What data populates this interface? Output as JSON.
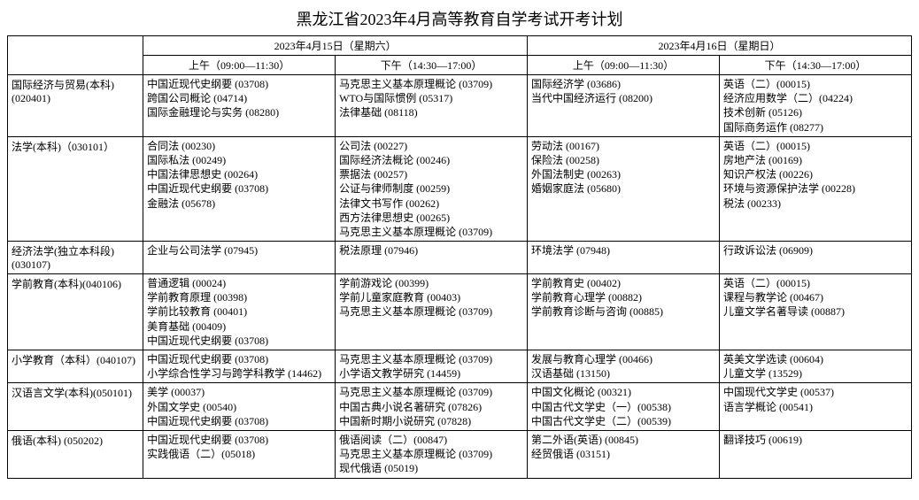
{
  "title": "黑龙江省2023年4月高等教育自学考试开考计划",
  "day1_header": "2023年4月15日（星期六）",
  "day2_header": "2023年4月16日（星期日）",
  "sat_am": "上午（09:00—11:30）",
  "sat_pm": "下午（14:30—17:00）",
  "sun_am": "上午（09:00—11:30）",
  "sun_pm": "下午（14:30—17:00）",
  "rows": [
    {
      "major": "国际经济与贸易(本科)(020401)",
      "sat_am": [
        "中国近现代史纲要 (03708)",
        "跨国公司概论 (04714)",
        "国际金融理论与实务 (08280)"
      ],
      "sat_pm": [
        "马克思主义基本原理概论 (03709)",
        "WTO与国际惯例 (05317)",
        "法律基础 (08118)"
      ],
      "sun_am": [
        "国际经济学 (03686)",
        "当代中国经济运行 (08200)"
      ],
      "sun_pm": [
        "英语（二）(00015)",
        "经济应用数学（二）(04224)",
        "技术创新 (05126)",
        "国际商务运作 (08277)"
      ]
    },
    {
      "major": "法学(本科)（030101）",
      "sat_am": [
        "合同法 (00230)",
        "国际私法 (00249)",
        "中国法律思想史 (00264)",
        "中国近现代史纲要 (03708)",
        "金融法 (05678)"
      ],
      "sat_pm": [
        "公司法 (00227)",
        "国际经济法概论 (00246)",
        "票据法 (00257)",
        "公证与律师制度 (00259)",
        "法律文书写作 (00262)",
        "西方法律思想史 (00265)",
        "马克思主义基本原理概论 (03709)"
      ],
      "sun_am": [
        "劳动法 (00167)",
        "保险法 (00258)",
        "外国法制史 (00263)",
        "婚姻家庭法 (05680)"
      ],
      "sun_pm": [
        "英语（二）(00015)",
        "房地产法 (00169)",
        "知识产权法 (00226)",
        "环境与资源保护法学 (00228)",
        "税法 (00233)"
      ]
    },
    {
      "major": "经济法学(独立本科段)(030107)",
      "sat_am": [
        "企业与公司法学 (07945)"
      ],
      "sat_pm": [
        "税法原理 (07946)"
      ],
      "sun_am": [
        "环境法学 (07948)"
      ],
      "sun_pm": [
        "行政诉讼法 (06909)"
      ]
    },
    {
      "major": "学前教育(本科)(040106)",
      "sat_am": [
        "普通逻辑 (00024)",
        "学前教育原理 (00398)",
        "学前比较教育 (00401)",
        "美育基础 (00409)",
        "中国近现代史纲要 (03708)"
      ],
      "sat_pm": [
        "学前游戏论 (00399)",
        "学前儿童家庭教育 (00403)",
        "马克思主义基本原理概论 (03709)"
      ],
      "sun_am": [
        "学前教育史 (00402)",
        "学前教育心理学 (00882)",
        "学前教育诊断与咨询 (00885)"
      ],
      "sun_pm": [
        "英语（二）(00015)",
        "课程与教学论 (00467)",
        "儿童文学名著导读 (00887)"
      ]
    },
    {
      "major": "小学教育（本科）(040107)",
      "sat_am": [
        "中国近现代史纲要 (03708)",
        "小学综合性学习与跨学科教学 (14462)"
      ],
      "sat_pm": [
        "马克思主义基本原理概论 (03709)",
        "小学语文教学研究 (14459)"
      ],
      "sun_am": [
        "发展与教育心理学 (00466)",
        "汉语基础 (13150)"
      ],
      "sun_pm": [
        "英美文学选读 (00604)",
        "儿童文学 (13529)"
      ]
    },
    {
      "major": "汉语言文学(本科)(050101)",
      "sat_am": [
        "美学 (00037)",
        "外国文学史 (00540)",
        "中国近现代史纲要 (03708)"
      ],
      "sat_pm": [
        "马克思主义基本原理概论 (03709)",
        "中国古典小说名著研究 (07826)",
        "中国新时期小说研究 (07828)"
      ],
      "sun_am": [
        "中国文化概论 (00321)",
        "中国古代文学史（一）(00538)",
        "中国古代文学史（二）(00539)"
      ],
      "sun_pm": [
        "中国现代文学史 (00537)",
        "语言学概论 (00541)"
      ]
    },
    {
      "major": "俄语(本科) (050202)",
      "sat_am": [
        "中国近现代史纲要 (03708)",
        "实践俄语（二）(05018)"
      ],
      "sat_pm": [
        "俄语阅读（二）(00847)",
        "马克思主义基本原理概论 (03709)",
        "现代俄语 (05019)"
      ],
      "sun_am": [
        "第二外语(英语) (00845)",
        "经贸俄语 (03151)"
      ],
      "sun_pm": [
        "翻译技巧 (00619)"
      ]
    }
  ]
}
